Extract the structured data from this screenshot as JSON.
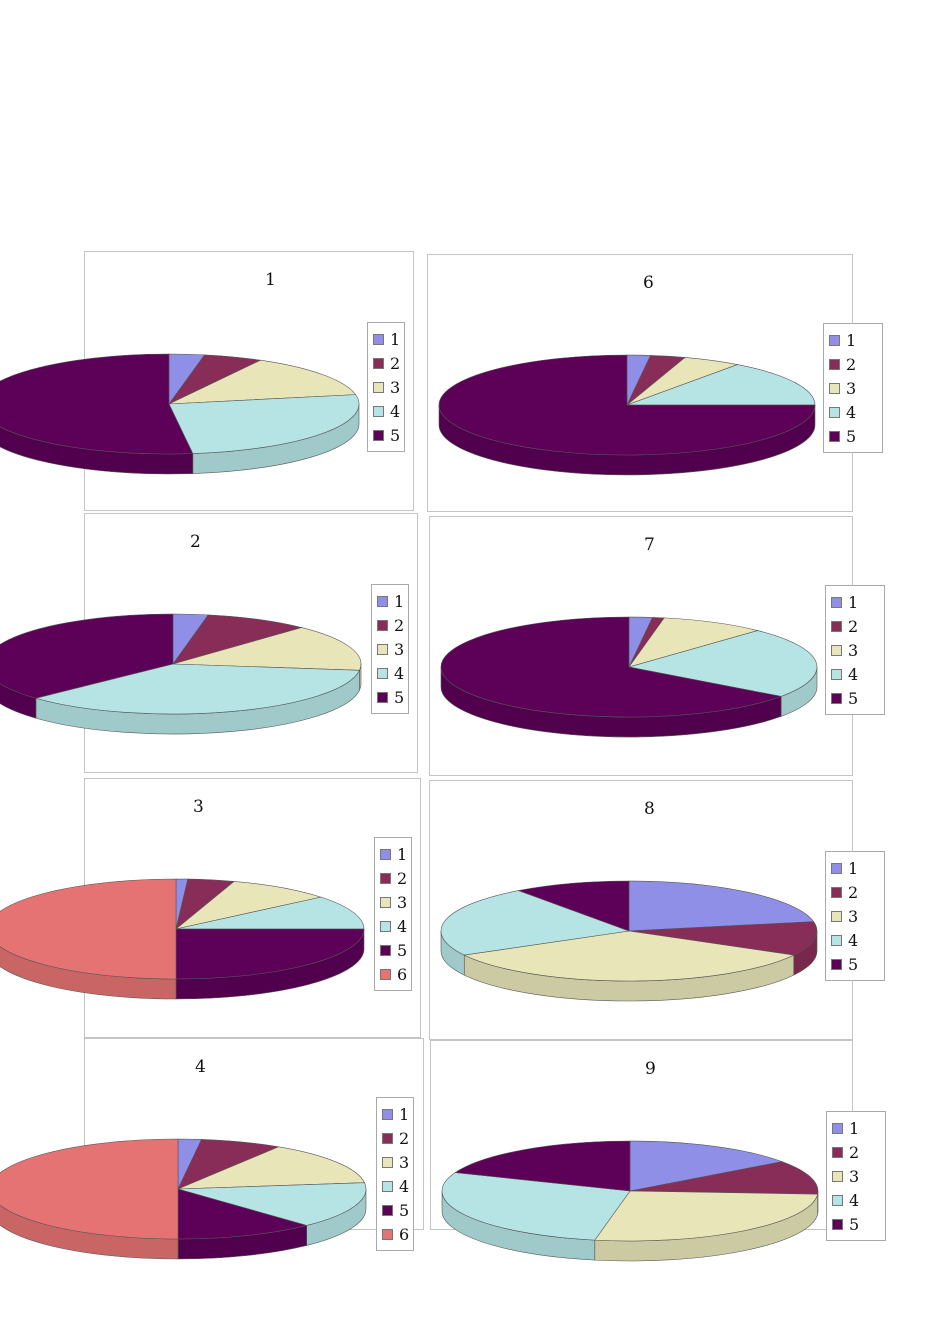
{
  "chart_data": [
    {
      "type": "pie",
      "title": "1",
      "categories": [
        "1",
        "2",
        "3",
        "4",
        "5"
      ],
      "values": [
        3,
        5,
        14,
        26,
        52
      ],
      "legend": "right"
    },
    {
      "type": "pie",
      "title": "2",
      "categories": [
        "1",
        "2",
        "3",
        "4",
        "5"
      ],
      "values": [
        3,
        9,
        15,
        36,
        37
      ],
      "legend": "right"
    },
    {
      "type": "pie",
      "title": "3",
      "categories": [
        "1",
        "2",
        "3",
        "4",
        "5",
        "6"
      ],
      "values": [
        1,
        4,
        9,
        11,
        25,
        50
      ],
      "legend": "right"
    },
    {
      "type": "pie",
      "title": "4",
      "categories": [
        "1",
        "2",
        "3",
        "4",
        "5",
        "6"
      ],
      "values": [
        2,
        7,
        14,
        15,
        12,
        50
      ],
      "legend": "right"
    },
    {
      "type": "pie",
      "title": "6",
      "categories": [
        "1",
        "2",
        "3",
        "4",
        "5"
      ],
      "values": [
        2,
        3,
        5,
        15,
        75
      ],
      "legend": "right"
    },
    {
      "type": "pie",
      "title": "7",
      "categories": [
        "1",
        "2",
        "3",
        "4",
        "5"
      ],
      "values": [
        2,
        1,
        9,
        23,
        65
      ],
      "legend": "right"
    },
    {
      "type": "pie",
      "title": "8",
      "categories": [
        "1",
        "2",
        "3",
        "4",
        "5"
      ],
      "values": [
        22,
        11,
        34,
        23,
        10
      ],
      "legend": "right"
    },
    {
      "type": "pie",
      "title": "9",
      "categories": [
        "1",
        "2",
        "3",
        "4",
        "5"
      ],
      "values": [
        15,
        11,
        27,
        28,
        19
      ],
      "legend": "right"
    }
  ],
  "colors": [
    "#8f8fe8",
    "#882c58",
    "#e8e6b8",
    "#b6e4e4",
    "#5c0058",
    "#e57373"
  ]
}
